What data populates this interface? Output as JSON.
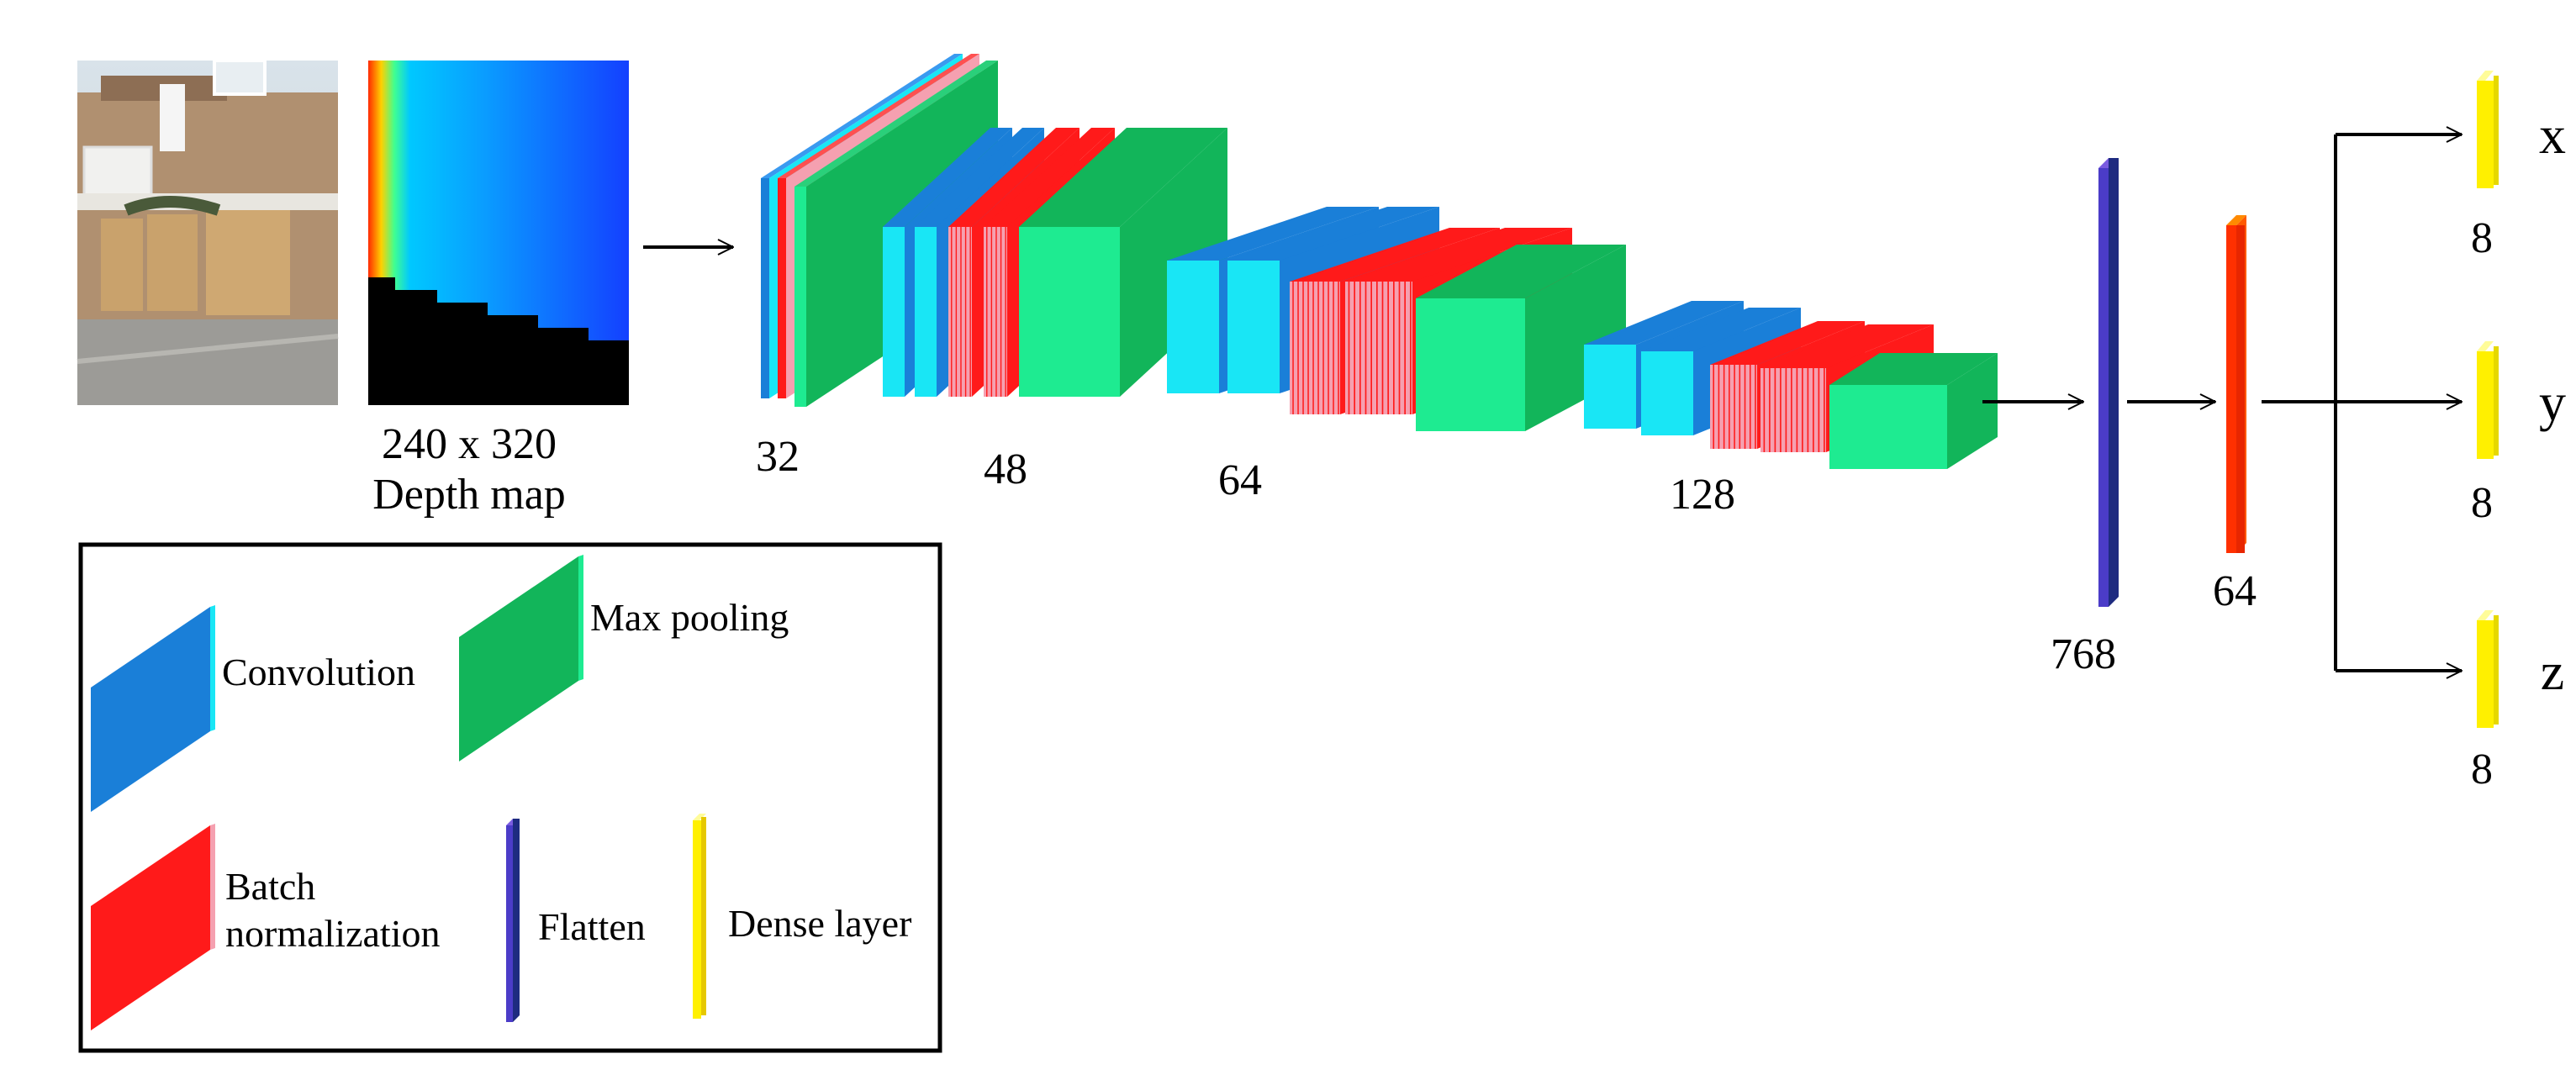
{
  "input": {
    "size_label": "240 x 320",
    "name_label": "Depth map"
  },
  "blocks": [
    {
      "filters_label": "32"
    },
    {
      "filters_label": "48"
    },
    {
      "filters_label": "64"
    },
    {
      "filters_label": "128"
    }
  ],
  "flatten": {
    "units_label": "768"
  },
  "dense_hidden": {
    "units_label": "64"
  },
  "outputs": [
    {
      "name": "x",
      "units_label": "8"
    },
    {
      "name": "y",
      "units_label": "8"
    },
    {
      "name": "z",
      "units_label": "8"
    }
  ],
  "legend": {
    "convolution": "Convolution",
    "max_pooling": "Max pooling",
    "batch_norm_line1": "Batch",
    "batch_norm_line2": "normalization",
    "flatten": "Flatten",
    "dense": "Dense layer"
  },
  "colors": {
    "convolution": "#1A7FD8",
    "convolution_side": "#19E6F5",
    "batch_norm": "#FF1A1A",
    "batch_norm_side": "#F5A0B0",
    "max_pooling": "#12B55A",
    "max_pooling_side": "#1EEB91",
    "flatten": "#4B3CC8",
    "dense_hidden": "#FF3000",
    "dense_output": "#FFF000"
  }
}
